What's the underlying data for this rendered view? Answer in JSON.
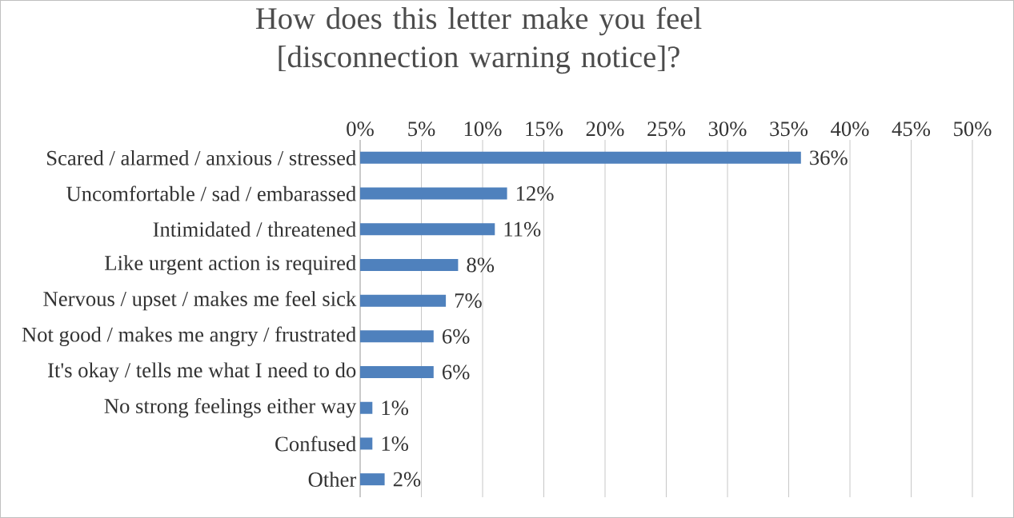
{
  "chart_data": {
    "type": "bar",
    "orientation": "horizontal",
    "title": "How does this letter make you feel [disconnection warning notice]?",
    "categories": [
      "Scared / alarmed / anxious / stressed",
      "Uncomfortable / sad / embarassed",
      "Intimidated / threatened",
      "Like urgent action is required",
      "Nervous / upset / makes me feel sick",
      "Not good / makes me angry / frustrated",
      "It's okay / tells me what I need to do",
      "No strong feelings either way",
      "Confused",
      "Other"
    ],
    "values": [
      36,
      12,
      11,
      8,
      7,
      6,
      6,
      1,
      1,
      2
    ],
    "value_labels": [
      "36%",
      "12%",
      "11%",
      "8%",
      "7%",
      "6%",
      "6%",
      "1%",
      "1%",
      "2%"
    ],
    "color": "#4f81bd",
    "xlim": [
      0,
      50
    ],
    "xticks": [
      {
        "value": 0,
        "label": "0%"
      },
      {
        "value": 5,
        "label": "5%"
      },
      {
        "value": 10,
        "label": "10%"
      },
      {
        "value": 15,
        "label": "15%"
      },
      {
        "value": 20,
        "label": "20%"
      },
      {
        "value": 25,
        "label": "25%"
      },
      {
        "value": 30,
        "label": "30%"
      },
      {
        "value": 35,
        "label": "35%"
      },
      {
        "value": 40,
        "label": "40%"
      },
      {
        "value": 45,
        "label": "45%"
      },
      {
        "value": 50,
        "label": "50%"
      }
    ],
    "grid": "x"
  }
}
